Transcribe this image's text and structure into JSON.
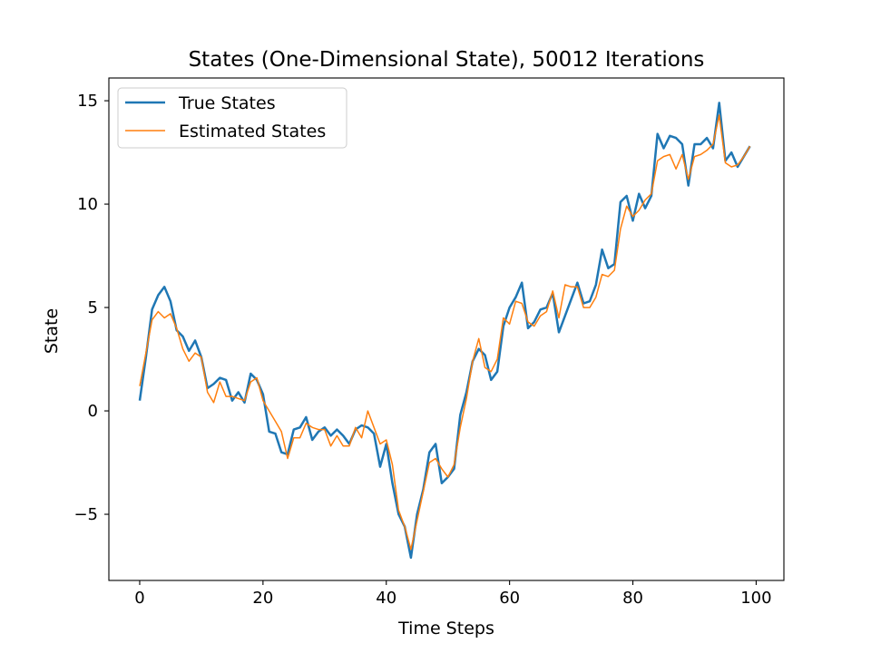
{
  "chart_data": {
    "type": "line",
    "title": "States (One-Dimensional State), 50012 Iterations",
    "xlabel": "Time Steps",
    "ylabel": "State",
    "xlim": [
      -5,
      104.5
    ],
    "ylim": [
      -8.2,
      16.1
    ],
    "xticks": [
      0,
      20,
      40,
      60,
      80,
      100
    ],
    "yticks": [
      -5,
      0,
      5,
      10,
      15
    ],
    "ytick_labels": [
      "−5",
      "0",
      "5",
      "10",
      "15"
    ],
    "grid": false,
    "legend_position": "upper-left",
    "x": [
      0,
      1,
      2,
      3,
      4,
      5,
      6,
      7,
      8,
      9,
      10,
      11,
      12,
      13,
      14,
      15,
      16,
      17,
      18,
      19,
      20,
      21,
      22,
      23,
      24,
      25,
      26,
      27,
      28,
      29,
      30,
      31,
      32,
      33,
      34,
      35,
      36,
      37,
      38,
      39,
      40,
      41,
      42,
      43,
      44,
      45,
      46,
      47,
      48,
      49,
      50,
      51,
      52,
      53,
      54,
      55,
      56,
      57,
      58,
      59,
      60,
      61,
      62,
      63,
      64,
      65,
      66,
      67,
      68,
      69,
      70,
      71,
      72,
      73,
      74,
      75,
      76,
      77,
      78,
      79,
      80,
      81,
      82,
      83,
      84,
      85,
      86,
      87,
      88,
      89,
      90,
      91,
      92,
      93,
      94,
      95,
      96,
      97,
      98,
      99
    ],
    "series": [
      {
        "name": "True States",
        "color": "#1f77b4",
        "width": 2.5,
        "values": [
          0.5,
          2.6,
          4.9,
          5.6,
          6.0,
          5.3,
          3.9,
          3.6,
          2.9,
          3.4,
          2.6,
          1.1,
          1.3,
          1.6,
          1.5,
          0.5,
          0.9,
          0.4,
          1.8,
          1.5,
          0.8,
          -1.0,
          -1.1,
          -2.0,
          -2.1,
          -0.9,
          -0.8,
          -0.3,
          -1.4,
          -1.0,
          -0.8,
          -1.2,
          -0.9,
          -1.2,
          -1.6,
          -0.9,
          -0.7,
          -0.8,
          -1.1,
          -2.7,
          -1.6,
          -3.5,
          -5.0,
          -5.6,
          -7.1,
          -5.0,
          -3.8,
          -2.0,
          -1.6,
          -3.5,
          -3.2,
          -2.8,
          -0.2,
          0.9,
          2.4,
          3.0,
          2.7,
          1.5,
          1.9,
          4.1,
          5.0,
          5.5,
          6.2,
          4.0,
          4.3,
          4.9,
          5.0,
          5.7,
          3.8,
          4.6,
          5.4,
          6.2,
          5.2,
          5.3,
          6.1,
          7.8,
          6.9,
          7.1,
          10.1,
          10.4,
          9.2,
          10.5,
          9.8,
          10.4,
          13.4,
          12.7,
          13.3,
          13.2,
          12.9,
          10.9,
          12.9,
          12.9,
          13.2,
          12.7,
          14.9,
          12.1,
          12.5,
          11.8,
          12.3,
          12.8
        ]
      },
      {
        "name": "Estimated States",
        "color": "#ff7f0e",
        "width": 1.5,
        "values": [
          1.2,
          2.8,
          4.4,
          4.8,
          4.5,
          4.7,
          4.0,
          3.0,
          2.4,
          2.8,
          2.6,
          0.9,
          0.4,
          1.4,
          0.7,
          0.7,
          0.6,
          0.5,
          1.4,
          1.6,
          0.5,
          0.0,
          -0.5,
          -1.0,
          -2.3,
          -1.3,
          -1.3,
          -0.6,
          -0.8,
          -0.9,
          -0.9,
          -1.7,
          -1.2,
          -1.7,
          -1.7,
          -0.8,
          -1.3,
          0.0,
          -0.8,
          -1.6,
          -1.4,
          -2.6,
          -4.8,
          -5.6,
          -6.7,
          -5.3,
          -3.9,
          -2.5,
          -2.3,
          -2.8,
          -3.2,
          -2.6,
          -0.8,
          0.6,
          2.4,
          3.5,
          2.1,
          1.9,
          2.5,
          4.5,
          4.2,
          5.3,
          5.2,
          4.3,
          4.1,
          4.6,
          4.8,
          5.8,
          4.5,
          6.1,
          6.0,
          6.0,
          5.0,
          5.0,
          5.5,
          6.6,
          6.5,
          6.8,
          8.8,
          9.9,
          9.4,
          9.7,
          10.2,
          10.5,
          12.1,
          12.3,
          12.4,
          11.7,
          12.4,
          11.2,
          12.3,
          12.4,
          12.6,
          12.9,
          14.3,
          12.0,
          11.8,
          11.9,
          12.3,
          12.8
        ]
      }
    ]
  }
}
